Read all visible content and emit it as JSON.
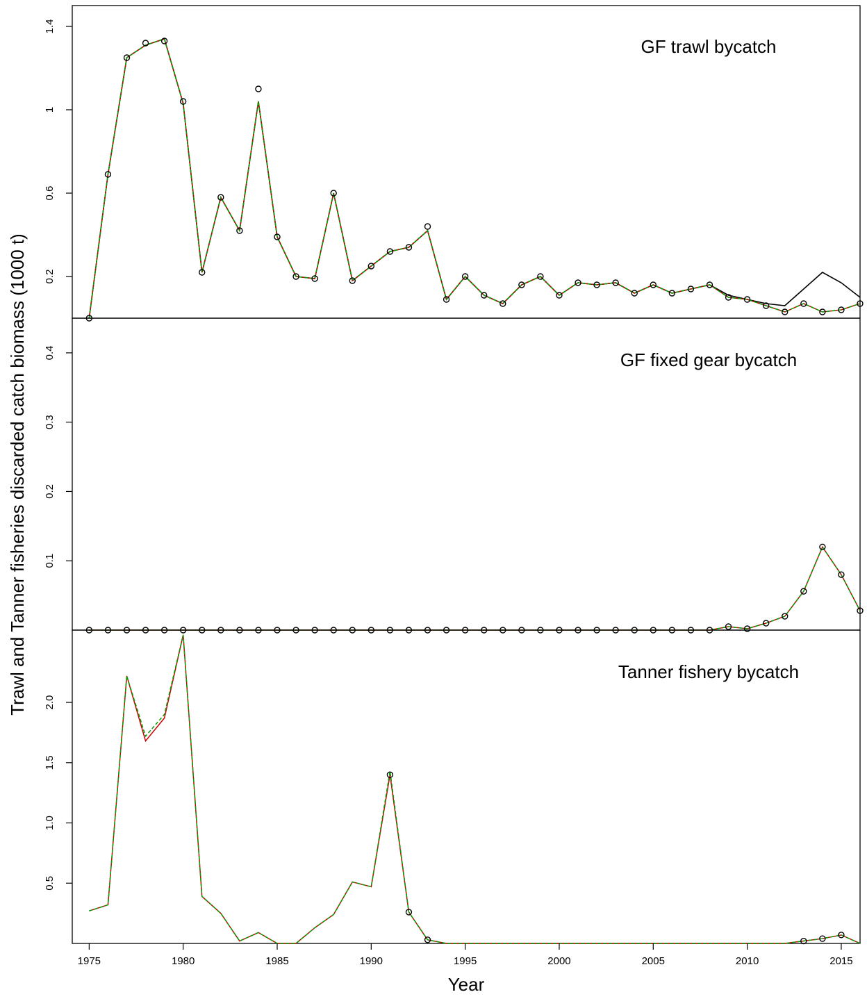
{
  "chart_data": {
    "type": "line",
    "xlabel": "Year",
    "ylabel": "Trawl and Tanner fisheries discarded catch biomass (1000 t)",
    "xlim": [
      1974.1,
      2016
    ],
    "x_ticks": [
      1975,
      1980,
      1985,
      1990,
      1995,
      2000,
      2005,
      2010,
      2015
    ],
    "x_tick_labels": [
      "1975",
      "1980",
      "1985",
      "1990",
      "1995",
      "2000",
      "2005",
      "2010",
      "2015"
    ],
    "colors": {
      "observed": "#000000",
      "model_black": "#000000",
      "model_red": "#cc0000",
      "model_green": "#00a000"
    },
    "panels": [
      {
        "title": "GF trawl bycatch",
        "ylim": [
          0,
          1.5
        ],
        "y_ticks": [
          0.2,
          0.6,
          1.0,
          1.4
        ],
        "y_tick_labels": [
          "0.2",
          "0.6",
          "1",
          "1.4"
        ],
        "x": [
          1975,
          1976,
          1977,
          1978,
          1979,
          1980,
          1981,
          1982,
          1983,
          1984,
          1985,
          1986,
          1987,
          1988,
          1989,
          1990,
          1991,
          1992,
          1993,
          1994,
          1995,
          1996,
          1997,
          1998,
          1999,
          2000,
          2001,
          2002,
          2003,
          2004,
          2005,
          2006,
          2007,
          2008,
          2009,
          2010,
          2011,
          2012,
          2013,
          2014,
          2015,
          2016
        ],
        "observed": [
          0.0,
          0.69,
          1.25,
          1.32,
          1.33,
          1.04,
          0.22,
          0.58,
          0.42,
          1.1,
          0.39,
          0.2,
          0.19,
          0.6,
          0.18,
          0.25,
          0.32,
          0.34,
          0.44,
          0.09,
          0.2,
          0.11,
          0.07,
          0.16,
          0.2,
          0.11,
          0.17,
          0.16,
          0.17,
          0.12,
          0.16,
          0.12,
          0.14,
          0.16,
          0.1,
          0.09,
          0.06,
          0.03,
          0.07,
          0.03,
          0.04,
          0.07
        ],
        "series": [
          {
            "color": "black",
            "style": "solid",
            "values": [
              0.0,
              0.69,
              1.25,
              1.31,
              1.34,
              1.03,
              0.22,
              0.58,
              0.42,
              1.04,
              0.39,
              0.2,
              0.19,
              0.6,
              0.18,
              0.25,
              0.32,
              0.34,
              0.42,
              0.09,
              0.2,
              0.11,
              0.07,
              0.16,
              0.2,
              0.11,
              0.17,
              0.16,
              0.17,
              0.12,
              0.16,
              0.12,
              0.14,
              0.16,
              0.11,
              0.09,
              0.07,
              0.06,
              0.14,
              0.22,
              0.17,
              0.1
            ]
          },
          {
            "color": "red",
            "style": "solid",
            "values": [
              0.0,
              0.69,
              1.25,
              1.31,
              1.34,
              1.03,
              0.22,
              0.58,
              0.42,
              1.04,
              0.39,
              0.2,
              0.19,
              0.6,
              0.18,
              0.25,
              0.32,
              0.34,
              0.42,
              0.09,
              0.2,
              0.11,
              0.07,
              0.16,
              0.2,
              0.11,
              0.17,
              0.16,
              0.17,
              0.12,
              0.16,
              0.12,
              0.14,
              0.16,
              0.1,
              0.09,
              0.06,
              0.03,
              0.07,
              0.03,
              0.04,
              0.07
            ]
          },
          {
            "color": "green",
            "style": "dashed",
            "values": [
              0.0,
              0.69,
              1.25,
              1.31,
              1.34,
              1.03,
              0.22,
              0.58,
              0.42,
              1.04,
              0.39,
              0.2,
              0.19,
              0.6,
              0.18,
              0.25,
              0.32,
              0.34,
              0.42,
              0.09,
              0.2,
              0.11,
              0.07,
              0.16,
              0.2,
              0.11,
              0.17,
              0.16,
              0.17,
              0.12,
              0.16,
              0.12,
              0.14,
              0.16,
              0.1,
              0.09,
              0.06,
              0.03,
              0.07,
              0.03,
              0.04,
              0.07
            ]
          }
        ]
      },
      {
        "title": "GF fixed gear bycatch",
        "ylim": [
          0,
          0.45
        ],
        "y_ticks": [
          0.1,
          0.2,
          0.3,
          0.4
        ],
        "y_tick_labels": [
          "0.1",
          "0.2",
          "0.3",
          "0.4"
        ],
        "x": [
          1975,
          1976,
          1977,
          1978,
          1979,
          1980,
          1981,
          1982,
          1983,
          1984,
          1985,
          1986,
          1987,
          1988,
          1989,
          1990,
          1991,
          1992,
          1993,
          1994,
          1995,
          1996,
          1997,
          1998,
          1999,
          2000,
          2001,
          2002,
          2003,
          2004,
          2005,
          2006,
          2007,
          2008,
          2009,
          2010,
          2011,
          2012,
          2013,
          2014,
          2015,
          2016
        ],
        "observed": [
          0,
          0,
          0,
          0,
          0,
          0,
          0,
          0,
          0,
          0,
          0,
          0,
          0,
          0,
          0,
          0,
          0,
          0,
          0,
          0,
          0,
          0,
          0,
          0,
          0,
          0,
          0,
          0,
          0,
          0,
          0,
          0,
          0,
          0,
          0.005,
          0.002,
          0.01,
          0.02,
          0.056,
          0.12,
          0.08,
          0.028
        ],
        "series": [
          {
            "color": "red",
            "style": "solid",
            "values": [
              0,
              0,
              0,
              0,
              0,
              0,
              0,
              0,
              0,
              0,
              0,
              0,
              0,
              0,
              0,
              0,
              0,
              0,
              0,
              0,
              0,
              0,
              0,
              0,
              0,
              0,
              0,
              0,
              0,
              0,
              0,
              0,
              0,
              0,
              0.005,
              0.002,
              0.01,
              0.02,
              0.056,
              0.12,
              0.08,
              0.028
            ]
          },
          {
            "color": "green",
            "style": "dashed",
            "values": [
              0,
              0,
              0,
              0,
              0,
              0,
              0,
              0,
              0,
              0,
              0,
              0,
              0,
              0,
              0,
              0,
              0,
              0,
              0,
              0,
              0,
              0,
              0,
              0,
              0,
              0,
              0,
              0,
              0,
              0,
              0,
              0,
              0,
              0,
              0.005,
              0.002,
              0.01,
              0.02,
              0.056,
              0.12,
              0.08,
              0.028
            ]
          }
        ]
      },
      {
        "title": "Tanner fishery bycatch",
        "ylim": [
          0,
          2.6
        ],
        "y_ticks": [
          0.5,
          1.0,
          1.5,
          2.0
        ],
        "y_tick_labels": [
          "0.5",
          "1.0",
          "1.5",
          "2.0"
        ],
        "x": [
          1975,
          1976,
          1977,
          1978,
          1979,
          1980,
          1981,
          1982,
          1983,
          1984,
          1985,
          1986,
          1987,
          1988,
          1989,
          1990,
          1991,
          1992,
          1993,
          1994,
          1995,
          1996,
          1997,
          1998,
          1999,
          2000,
          2001,
          2002,
          2003,
          2004,
          2005,
          2006,
          2007,
          2008,
          2009,
          2010,
          2011,
          2012,
          2013,
          2014,
          2015,
          2016
        ],
        "observed_x": [
          1991,
          1992,
          1993,
          2013,
          2014,
          2015
        ],
        "observed": [
          1.4,
          0.26,
          0.03,
          0.02,
          0.04,
          0.07
        ],
        "series": [
          {
            "color": "red",
            "style": "solid",
            "values": [
              0.27,
              0.32,
              2.22,
              1.68,
              1.87,
              2.56,
              0.39,
              0.25,
              0.02,
              0.09,
              0.0,
              0.0,
              0.13,
              0.24,
              0.51,
              0.47,
              1.4,
              0.26,
              0.03,
              0.0,
              0.0,
              0.0,
              0.0,
              0.0,
              0.0,
              0.0,
              0.0,
              0.0,
              0.0,
              0.0,
              0.0,
              0.0,
              0.0,
              0.0,
              0.0,
              0.0,
              0.0,
              0.0,
              0.02,
              0.04,
              0.07,
              0.0
            ]
          },
          {
            "color": "green",
            "style": "dashed",
            "values": [
              0.27,
              0.32,
              2.22,
              1.72,
              1.9,
              2.56,
              0.39,
              0.25,
              0.02,
              0.09,
              0.0,
              0.0,
              0.13,
              0.24,
              0.51,
              0.47,
              1.43,
              0.26,
              0.03,
              0.0,
              0.0,
              0.0,
              0.0,
              0.0,
              0.0,
              0.0,
              0.0,
              0.0,
              0.0,
              0.0,
              0.0,
              0.0,
              0.0,
              0.0,
              0.0,
              0.0,
              0.0,
              0.0,
              0.02,
              0.04,
              0.07,
              0.0
            ]
          }
        ]
      }
    ]
  }
}
